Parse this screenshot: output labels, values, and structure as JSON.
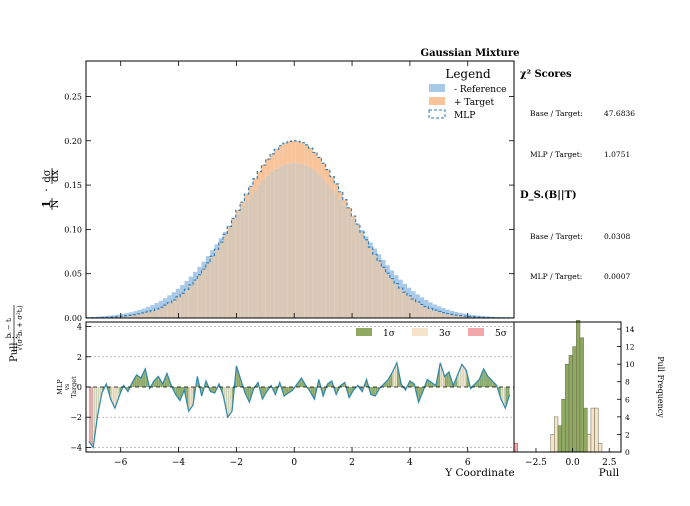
{
  "title": "Gaussian Mixture",
  "legend": {
    "title": "Legend",
    "reference_label": "- Reference",
    "target_label": "+ Target",
    "mlp_label": "MLP"
  },
  "colors": {
    "reference": "#a9c9e8",
    "target": "#f9c49a",
    "overlap": "#d9c8b6",
    "mlp": "#2b7bba",
    "pull_line": "#2e86ab",
    "sigma1": "#8fa862",
    "sigma3": "#f5e3cc",
    "sigma5": "#f2a7aa"
  },
  "stats": {
    "chi2_title": "χ² Scores",
    "chi2_base_label": "Base / Target:",
    "chi2_base_value": "47.6836",
    "chi2_mlp_label": "MLP / Target:",
    "chi2_mlp_value": "1.0751",
    "kl_title": "D_S.(B||T)",
    "kl_base_label": "Base / Target:",
    "kl_base_value": "0.0308",
    "kl_mlp_label": "MLP / Target:",
    "kl_mlp_value": "0.0007"
  },
  "pull_panel": {
    "ylabel_prefix": "Pull :",
    "side_label_line1": "MLP",
    "side_label_line2": "vs",
    "side_label_line3": "Target",
    "legend": [
      "1σ",
      "3σ",
      "5σ"
    ]
  },
  "hist_panel": {
    "xlabel": "Pull",
    "ylabel": "Pull Frequency"
  },
  "chart_data": [
    {
      "type": "histogram",
      "title": "Gaussian Mixture",
      "ylabel": "1/N · dσ/dx",
      "xlim": [
        -7.2,
        7.6
      ],
      "ylim": [
        0,
        0.29
      ],
      "yticks": [
        "0.00",
        "0.05",
        "0.10",
        "0.15",
        "0.20",
        "0.25"
      ],
      "reference": {
        "mean": 0,
        "sigma": 2.2,
        "peak": 0.175
      },
      "target": {
        "mean": 0,
        "sigma": 1.95,
        "peak": 0.2
      },
      "mlp": {
        "mean": 0,
        "sigma": 1.95,
        "peak": 0.2
      },
      "n_bins": 100
    },
    {
      "type": "area",
      "title": "Pull",
      "xlabel": "Y Coordinate",
      "ylabel": "MLP vs Target",
      "xlim": [
        -7.2,
        7.6
      ],
      "ylim": [
        -4.3,
        4.3
      ],
      "xticks": [
        "−6",
        "−4",
        "−2",
        "0",
        "2",
        "4",
        "6"
      ],
      "yticks": [
        "−4",
        "−2",
        "0",
        "2",
        "4"
      ],
      "gridlines": [
        -4,
        -2,
        2,
        4
      ],
      "x": [
        -7.1,
        -6.95,
        -6.8,
        -6.65,
        -6.5,
        -6.35,
        -6.2,
        -6.05,
        -5.9,
        -5.75,
        -5.6,
        -5.45,
        -5.3,
        -5.15,
        -5.0,
        -4.85,
        -4.7,
        -4.55,
        -4.4,
        -4.25,
        -4.1,
        -3.95,
        -3.8,
        -3.65,
        -3.5,
        -3.35,
        -3.2,
        -3.05,
        -2.9,
        -2.75,
        -2.6,
        -2.45,
        -2.3,
        -2.15,
        -2.0,
        -1.85,
        -1.7,
        -1.55,
        -1.4,
        -1.25,
        -1.1,
        -0.95,
        -0.8,
        -0.65,
        -0.5,
        -0.35,
        -0.2,
        -0.05,
        0.1,
        0.25,
        0.4,
        0.55,
        0.7,
        0.85,
        1.0,
        1.15,
        1.3,
        1.45,
        1.6,
        1.75,
        1.9,
        2.05,
        2.2,
        2.35,
        2.5,
        2.65,
        2.8,
        2.95,
        3.1,
        3.25,
        3.4,
        3.55,
        3.7,
        3.85,
        4.0,
        4.15,
        4.3,
        4.45,
        4.6,
        4.75,
        4.9,
        5.05,
        5.2,
        5.35,
        5.5,
        5.65,
        5.8,
        5.95,
        6.1,
        6.25,
        6.4,
        6.55,
        6.7,
        6.85,
        7.0,
        7.15,
        7.3,
        7.45
      ],
      "values": [
        -3.6,
        -4.0,
        -1.9,
        -0.4,
        0.2,
        -0.8,
        -1.4,
        -0.6,
        0.1,
        -0.3,
        0.3,
        0.8,
        0.6,
        1.2,
        -0.1,
        0.4,
        0.7,
        0.2,
        0.9,
        0.1,
        -0.5,
        -0.9,
        -0.2,
        -1.6,
        -1.2,
        0.7,
        -0.6,
        0.4,
        -0.3,
        -0.4,
        0.2,
        -0.6,
        -2.0,
        -1.6,
        1.4,
        0.5,
        -0.4,
        -1.0,
        -0.1,
        0.3,
        -0.8,
        -0.3,
        0.1,
        -0.5,
        0.3,
        -0.6,
        -0.4,
        -0.2,
        0.2,
        0.6,
        0.1,
        -0.3,
        -0.8,
        0.5,
        -0.6,
        0.2,
        0.4,
        -0.5,
        0.1,
        0.3,
        -0.7,
        -0.2,
        0.1,
        -0.3,
        0.5,
        -0.5,
        -0.6,
        -0.1,
        0.2,
        0.5,
        1.0,
        1.6,
        0.2,
        -0.2,
        0.4,
        0.2,
        -1.0,
        -0.3,
        0.5,
        0.3,
        0.1,
        1.6,
        0.7,
        1.0,
        0.1,
        0.8,
        1.5,
        1.1,
        -0.1,
        0.2,
        0.5,
        1.2,
        0.7,
        0.4,
        0.1,
        -0.8,
        -1.4,
        -0.5
      ]
    },
    {
      "type": "histogram",
      "orientation": "vertical",
      "xlabel": "Pull",
      "ylabel": "Pull Frequency",
      "xlim": [
        -4.0,
        3.3
      ],
      "ylim": [
        0,
        14.8
      ],
      "xticks": [
        "−2.5",
        "0.0",
        "2.5"
      ],
      "yticks": [
        "0",
        "2",
        "4",
        "6",
        "8",
        "10",
        "12",
        "14"
      ],
      "bin_width": 0.25,
      "bins": [
        {
          "x0": -4.0,
          "count": 1
        },
        {
          "x0": -1.5,
          "count": 2
        },
        {
          "x0": -1.25,
          "count": 4
        },
        {
          "x0": -1.0,
          "count": 3
        },
        {
          "x0": -0.75,
          "count": 6
        },
        {
          "x0": -0.5,
          "count": 10
        },
        {
          "x0": -0.25,
          "count": 11
        },
        {
          "x0": 0.0,
          "count": 12
        },
        {
          "x0": 0.25,
          "count": 15
        },
        {
          "x0": 0.5,
          "count": 13
        },
        {
          "x0": 0.75,
          "count": 5
        },
        {
          "x0": 1.0,
          "count": 2
        },
        {
          "x0": 1.25,
          "count": 5
        },
        {
          "x0": 1.5,
          "count": 5
        },
        {
          "x0": 1.75,
          "count": 1
        }
      ]
    }
  ]
}
